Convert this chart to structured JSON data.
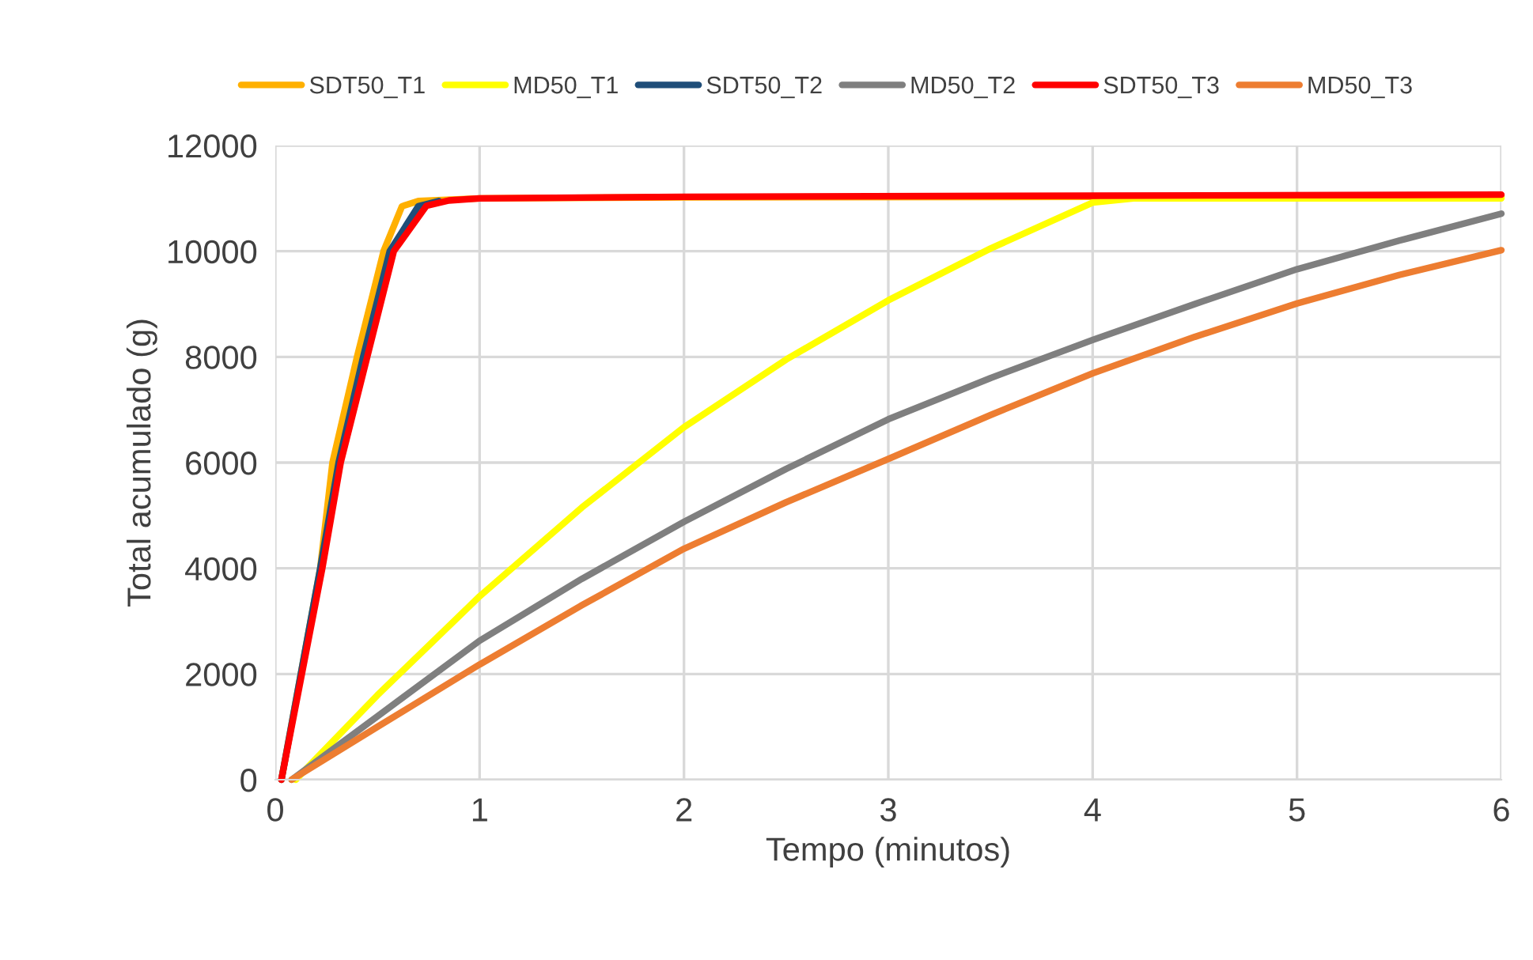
{
  "chart_data": {
    "type": "line",
    "xlabel": "Tempo (minutos)",
    "ylabel": "Total acumulado (g)",
    "xlim": [
      0,
      6
    ],
    "ylim": [
      0,
      12000
    ],
    "xticks": [
      0,
      1,
      2,
      3,
      4,
      5,
      6
    ],
    "yticks": [
      0,
      2000,
      4000,
      6000,
      8000,
      10000,
      12000
    ],
    "grid": true,
    "legend": "top",
    "marker": "none",
    "line_style": "solid",
    "series": [
      {
        "name": "SDT50_T1",
        "color": "#ffb000",
        "x": [
          0.03,
          0.22,
          0.28,
          0.4,
          0.53,
          0.62,
          0.7,
          1,
          2,
          4,
          6
        ],
        "values": [
          0,
          4000,
          6000,
          8000,
          10000,
          10850,
          10950,
          11000,
          11020,
          11030,
          11040
        ]
      },
      {
        "name": "MD50_T1",
        "color": "#ffff00",
        "x": [
          0.1,
          0.5,
          1,
          1.5,
          2,
          2.5,
          3,
          3.5,
          4,
          4.2,
          5,
          6
        ],
        "values": [
          0,
          1600,
          3470,
          5150,
          6670,
          7950,
          9070,
          10050,
          10920,
          11000,
          11000,
          11000
        ]
      },
      {
        "name": "SDT50_T2",
        "color": "#1f4e79",
        "x": [
          0.03,
          0.22,
          0.31,
          0.43,
          0.56,
          0.7,
          0.8
        ],
        "values": [
          0,
          4000,
          6000,
          8000,
          10000,
          10850,
          10950
        ]
      },
      {
        "name": "MD50_T2",
        "color": "#7f7f7f",
        "x": [
          0.08,
          0.5,
          1,
          1.5,
          2,
          2.5,
          3,
          3.5,
          4,
          4.5,
          5,
          5.5,
          6
        ],
        "values": [
          0,
          1200,
          2630,
          3800,
          4880,
          5880,
          6820,
          7600,
          8320,
          9000,
          9660,
          10200,
          10710
        ]
      },
      {
        "name": "SDT50_T3",
        "color": "#ff0000",
        "x": [
          0.03,
          0.23,
          0.32,
          0.45,
          0.58,
          0.74,
          0.85,
          1,
          2,
          4,
          6
        ],
        "values": [
          0,
          4000,
          6000,
          8000,
          10000,
          10860,
          10960,
          11000,
          11030,
          11050,
          11070
        ]
      },
      {
        "name": "MD50_T3",
        "color": "#ed7d31",
        "x": [
          0.08,
          0.5,
          1,
          1.5,
          2,
          2.5,
          3,
          3.5,
          4,
          4.5,
          5,
          5.5,
          6
        ],
        "values": [
          0,
          1000,
          2180,
          3300,
          4370,
          5250,
          6070,
          6900,
          7690,
          8380,
          9010,
          9550,
          10020
        ]
      }
    ]
  }
}
